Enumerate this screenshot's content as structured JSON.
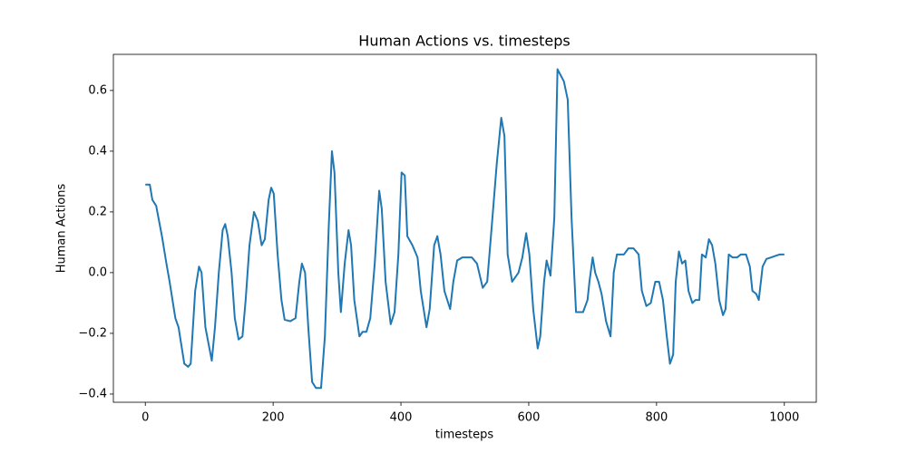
{
  "chart_data": {
    "type": "line",
    "title": "Human Actions vs. timesteps",
    "x_label": "timesteps",
    "y_label": "Human Actions",
    "x": [
      0,
      7,
      11,
      17,
      26,
      33,
      38,
      47,
      52,
      61,
      67,
      71,
      78,
      84,
      88,
      94,
      104,
      109,
      115,
      121,
      125,
      129,
      135,
      140,
      146,
      152,
      157,
      163,
      170,
      176,
      182,
      187,
      193,
      197,
      201,
      207,
      213,
      218,
      227,
      235,
      241,
      245,
      250,
      255,
      261,
      267,
      275,
      281,
      287,
      292,
      296,
      302,
      306,
      312,
      318,
      322,
      327,
      335,
      340,
      346,
      352,
      359,
      366,
      370,
      376,
      384,
      390,
      396,
      401,
      406,
      410,
      418,
      426,
      431,
      440,
      445,
      452,
      457,
      462,
      468,
      477,
      482,
      488,
      496,
      511,
      519,
      528,
      535,
      542,
      550,
      557,
      562,
      567,
      574,
      584,
      590,
      596,
      601,
      607,
      614,
      618,
      624,
      628,
      634,
      640,
      645,
      650,
      655,
      661,
      667,
      674,
      685,
      692,
      695,
      700,
      704,
      709,
      714,
      721,
      728,
      733,
      738,
      749,
      756,
      764,
      772,
      777,
      784,
      791,
      798,
      804,
      810,
      816,
      821,
      826,
      830,
      835,
      840,
      845,
      850,
      856,
      861,
      867,
      871,
      877,
      882,
      887,
      892,
      898,
      904,
      908,
      913,
      919,
      926,
      932,
      940,
      946,
      950,
      956,
      960,
      966,
      972,
      979,
      986,
      993,
      1000
    ],
    "series": [
      {
        "name": "Human Actions",
        "color": "#1f77b4",
        "values": [
          0.29,
          0.29,
          0.24,
          0.22,
          0.12,
          0.03,
          -0.03,
          -0.15,
          -0.18,
          -0.3,
          -0.31,
          -0.3,
          -0.06,
          0.02,
          0.0,
          -0.18,
          -0.29,
          -0.18,
          0.0,
          0.14,
          0.16,
          0.12,
          0.0,
          -0.15,
          -0.22,
          -0.21,
          -0.09,
          0.09,
          0.2,
          0.17,
          0.09,
          0.11,
          0.24,
          0.28,
          0.26,
          0.06,
          -0.09,
          -0.155,
          -0.16,
          -0.15,
          -0.03,
          0.03,
          0.0,
          -0.18,
          -0.36,
          -0.38,
          -0.38,
          -0.21,
          0.15,
          0.4,
          0.33,
          0.0,
          -0.13,
          0.03,
          0.14,
          0.09,
          -0.09,
          -0.21,
          -0.195,
          -0.195,
          -0.15,
          0.03,
          0.27,
          0.21,
          -0.03,
          -0.17,
          -0.13,
          0.06,
          0.33,
          0.32,
          0.12,
          0.09,
          0.05,
          -0.06,
          -0.18,
          -0.12,
          0.09,
          0.12,
          0.06,
          -0.06,
          -0.12,
          -0.03,
          0.04,
          0.05,
          0.05,
          0.03,
          -0.05,
          -0.03,
          0.15,
          0.36,
          0.51,
          0.45,
          0.06,
          -0.03,
          0.0,
          0.05,
          0.13,
          0.06,
          -0.12,
          -0.25,
          -0.21,
          -0.03,
          0.04,
          -0.01,
          0.18,
          0.67,
          0.65,
          0.63,
          0.57,
          0.18,
          -0.13,
          -0.13,
          -0.09,
          -0.03,
          0.05,
          0.0,
          -0.03,
          -0.07,
          -0.16,
          -0.21,
          0.0,
          0.06,
          0.06,
          0.08,
          0.08,
          0.06,
          -0.06,
          -0.11,
          -0.1,
          -0.03,
          -0.03,
          -0.09,
          -0.21,
          -0.3,
          -0.27,
          -0.03,
          0.07,
          0.03,
          0.04,
          -0.06,
          -0.1,
          -0.09,
          -0.09,
          0.06,
          0.05,
          0.11,
          0.09,
          0.03,
          -0.09,
          -0.14,
          -0.12,
          0.06,
          0.05,
          0.05,
          0.06,
          0.06,
          0.02,
          -0.06,
          -0.07,
          -0.09,
          0.02,
          0.045,
          0.05,
          0.055,
          0.06,
          0.06
        ]
      }
    ],
    "xlim": [
      -50,
      1050
    ],
    "xticks": [
      0,
      200,
      400,
      600,
      800,
      1000
    ],
    "ylim": [
      -0.427,
      0.719
    ],
    "yticks": [
      {
        "value": -0.4,
        "label": "−0.4"
      },
      {
        "value": -0.2,
        "label": "−0.2"
      },
      {
        "value": 0,
        "label": "0.0"
      },
      0.2,
      0.4,
      0.6
    ],
    "grid": false
  }
}
